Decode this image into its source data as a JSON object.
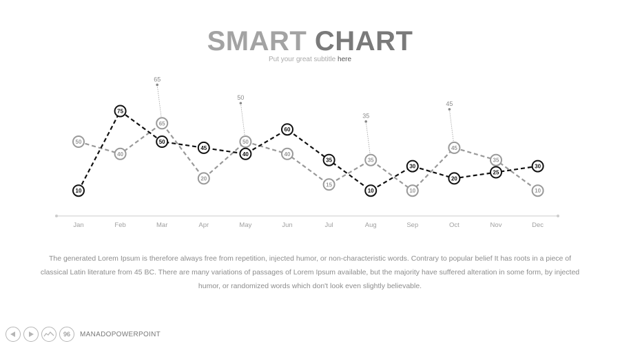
{
  "header": {
    "title_part1": "SMART",
    "title_part2": "CHART",
    "subtitle_part1": "Put your great subtitle",
    "subtitle_part2": "here"
  },
  "chart_data": {
    "type": "line",
    "categories": [
      "Jan",
      "Feb",
      "Mar",
      "Apr",
      "May",
      "Jun",
      "Jul",
      "Aug",
      "Sep",
      "Oct",
      "Nov",
      "Dec"
    ],
    "series": [
      {
        "values": [
          10,
          75,
          50,
          45,
          40,
          60,
          35,
          10,
          30,
          20,
          25,
          30
        ],
        "color": "#111111",
        "style": "dashed"
      },
      {
        "values": [
          50,
          40,
          65,
          20,
          50,
          40,
          15,
          35,
          10,
          45,
          35,
          10
        ],
        "color": "#999999",
        "style": "dashed"
      }
    ],
    "callouts": [
      {
        "month": "Mar",
        "value": 65
      },
      {
        "month": "May",
        "value": 50
      },
      {
        "month": "Aug",
        "value": 35
      },
      {
        "month": "Oct",
        "value": 45
      }
    ]
  },
  "body": {
    "text": "The generated Lorem Ipsum is therefore always free from repetition, injected humor, or non-characteristic words. Contrary to popular belief It has roots in a piece of classical Latin literature from 45 BC. There are many variations of passages of Lorem Ipsum available, but the majority have suffered alteration in some form, by injected humor, or randomized words which don't look even slightly believable."
  },
  "footer": {
    "page_number": "96",
    "brand": "MANADOPOWERPOINT",
    "icons": [
      "prev-arrow-icon",
      "next-arrow-icon",
      "chart-wave-icon"
    ]
  }
}
